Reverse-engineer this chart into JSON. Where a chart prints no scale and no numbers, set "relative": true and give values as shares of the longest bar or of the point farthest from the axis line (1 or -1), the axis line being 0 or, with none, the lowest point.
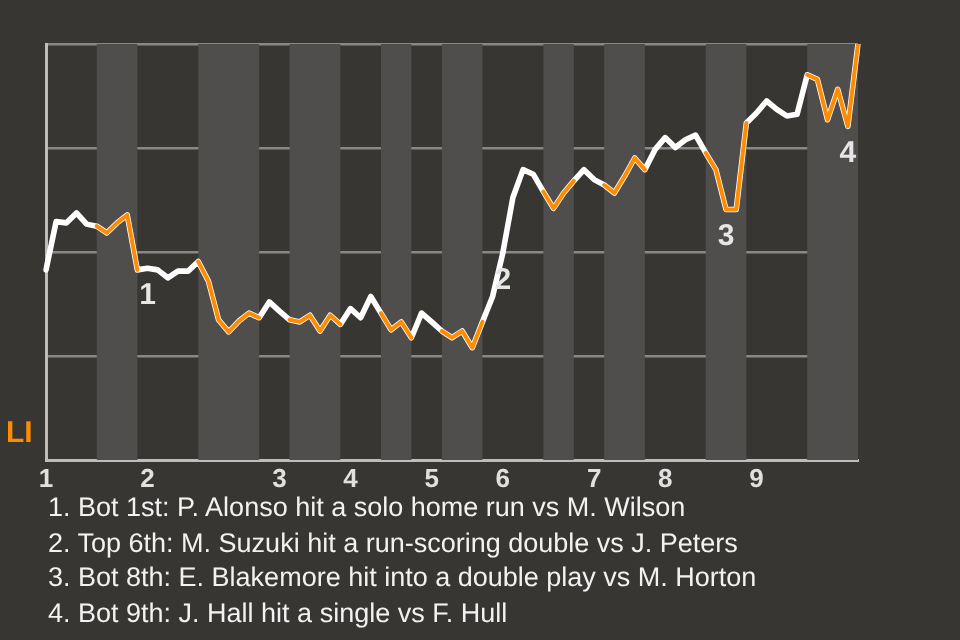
{
  "chart_data": {
    "type": "line",
    "relative": true,
    "grid": "y",
    "ylabel": "LI",
    "marker": "none",
    "categories": [
      "1",
      null,
      null,
      null,
      null,
      null,
      null,
      null,
      null,
      null,
      "2",
      null,
      null,
      null,
      null,
      null,
      null,
      null,
      null,
      null,
      null,
      null,
      null,
      "3",
      null,
      null,
      null,
      null,
      null,
      null,
      "4",
      null,
      null,
      null,
      null,
      null,
      null,
      null,
      "5",
      null,
      null,
      null,
      null,
      null,
      null,
      "6",
      null,
      null,
      null,
      null,
      null,
      null,
      null,
      null,
      "7",
      null,
      null,
      null,
      null,
      null,
      null,
      "8",
      null,
      null,
      null,
      null,
      null,
      null,
      null,
      null,
      "9",
      null,
      null,
      null,
      null,
      null,
      null,
      null,
      null,
      null,
      null
    ],
    "series": [
      {
        "color": "#ffffff",
        "values": [
          0.457,
          0.573,
          0.57,
          0.594,
          0.567,
          0.562,
          0.546,
          0.57,
          0.589,
          0.457,
          0.461,
          0.457,
          0.438,
          0.454,
          0.454,
          0.477,
          0.43,
          0.337,
          0.308,
          0.334,
          0.353,
          0.342,
          0.38,
          0.358,
          0.337,
          0.332,
          0.348,
          0.31,
          0.348,
          0.326,
          0.364,
          0.342,
          0.393,
          0.353,
          0.313,
          0.332,
          0.294,
          0.353,
          0.332,
          0.31,
          0.294,
          0.31,
          0.27,
          0.332,
          0.393,
          0.497,
          0.631,
          0.698,
          0.687,
          0.645,
          0.605,
          0.642,
          0.671,
          0.698,
          0.674,
          0.661,
          0.642,
          0.682,
          0.726,
          0.698,
          0.746,
          0.775,
          0.751,
          0.77,
          0.781,
          0.738,
          0.698,
          0.602,
          0.602,
          0.81,
          0.834,
          0.863,
          0.843,
          0.827,
          0.831,
          0.926,
          0.915,
          0.818,
          0.891,
          0.802,
          1
        ]
      },
      {
        "color": "#ff8c00",
        "values": [
          null,
          null,
          null,
          null,
          null,
          0.562,
          0.546,
          0.57,
          0.589,
          0.457,
          null,
          null,
          null,
          null,
          null,
          0.477,
          0.43,
          0.337,
          0.308,
          0.334,
          0.353,
          0.342,
          null,
          null,
          0.337,
          0.332,
          0.348,
          0.31,
          0.348,
          0.326,
          null,
          null,
          null,
          0.353,
          0.313,
          0.332,
          0.294,
          null,
          null,
          0.31,
          0.294,
          0.31,
          0.27,
          0.332,
          null,
          null,
          null,
          null,
          null,
          0.645,
          0.605,
          0.642,
          0.671,
          null,
          null,
          0.661,
          0.642,
          0.682,
          0.726,
          0.698,
          null,
          null,
          null,
          null,
          null,
          0.738,
          0.698,
          0.602,
          0.602,
          0.81,
          null,
          null,
          null,
          null,
          null,
          0.926,
          0.915,
          0.818,
          0.891,
          0.802,
          1
        ]
      }
    ],
    "annotations": [
      {
        "text": "1",
        "y": 0.461
      },
      {
        "text": "2",
        "x": "6",
        "y": 0.497
      },
      {
        "text": "3",
        "y": 0.602
      },
      {
        "text": "4",
        "y": 0.802
      },
      "1. Bot 1st: P. Alonso hit a solo home run vs M. Wilson",
      "2. Top 6th: M. Suzuki hit a run-scoring double vs J. Peters",
      "3. Bot 8th: E. Blakemore hit into a double play vs M. Horton",
      "4. Bot 9th: J. Hall hit a single vs F. Hull"
    ]
  }
}
